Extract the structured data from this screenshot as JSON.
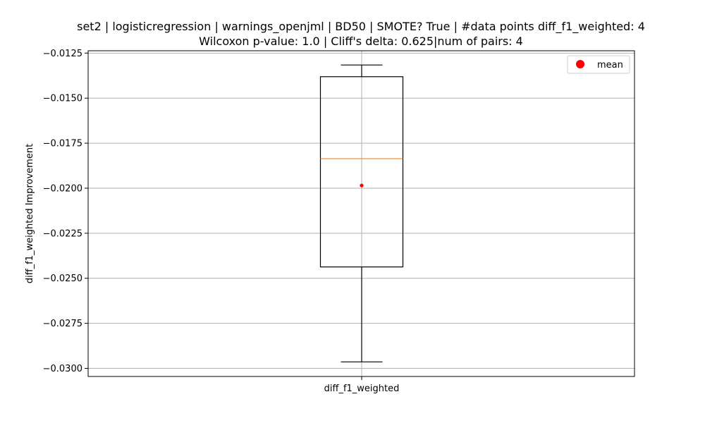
{
  "chart_data": {
    "type": "box",
    "title_line1": "set2 | logisticregression | warnings_openjml | BD50 | SMOTE? True | #data points diff_f1_weighted: 4",
    "title_line2": "Wilcoxon p-value: 1.0 | Cliff's delta: 0.625|num of pairs: 4",
    "xlabel": "",
    "ylabel": "diff_f1_weighted Improvement",
    "categories": [
      "diff_f1_weighted"
    ],
    "ylim": [
      -0.03045,
      -0.01237
    ],
    "yticks": [
      -0.0125,
      -0.015,
      -0.0175,
      -0.02,
      -0.0225,
      -0.025,
      -0.0275,
      -0.03
    ],
    "ytick_labels": [
      "−0.0125",
      "−0.0150",
      "−0.0175",
      "−0.0200",
      "−0.0225",
      "−0.0250",
      "−0.0275",
      "−0.0300"
    ],
    "grid": true,
    "box": {
      "whisker_low": -0.02964,
      "q1": -0.02437,
      "median": -0.01836,
      "q3": -0.01381,
      "whisker_high": -0.01316,
      "mean": -0.01985
    },
    "legend": {
      "position": "top-right",
      "entries": [
        "mean"
      ]
    },
    "colors": {
      "box": "#000000",
      "median": "#ff7f0e",
      "mean": "#ff0000",
      "grid": "#b0b0b0"
    }
  }
}
